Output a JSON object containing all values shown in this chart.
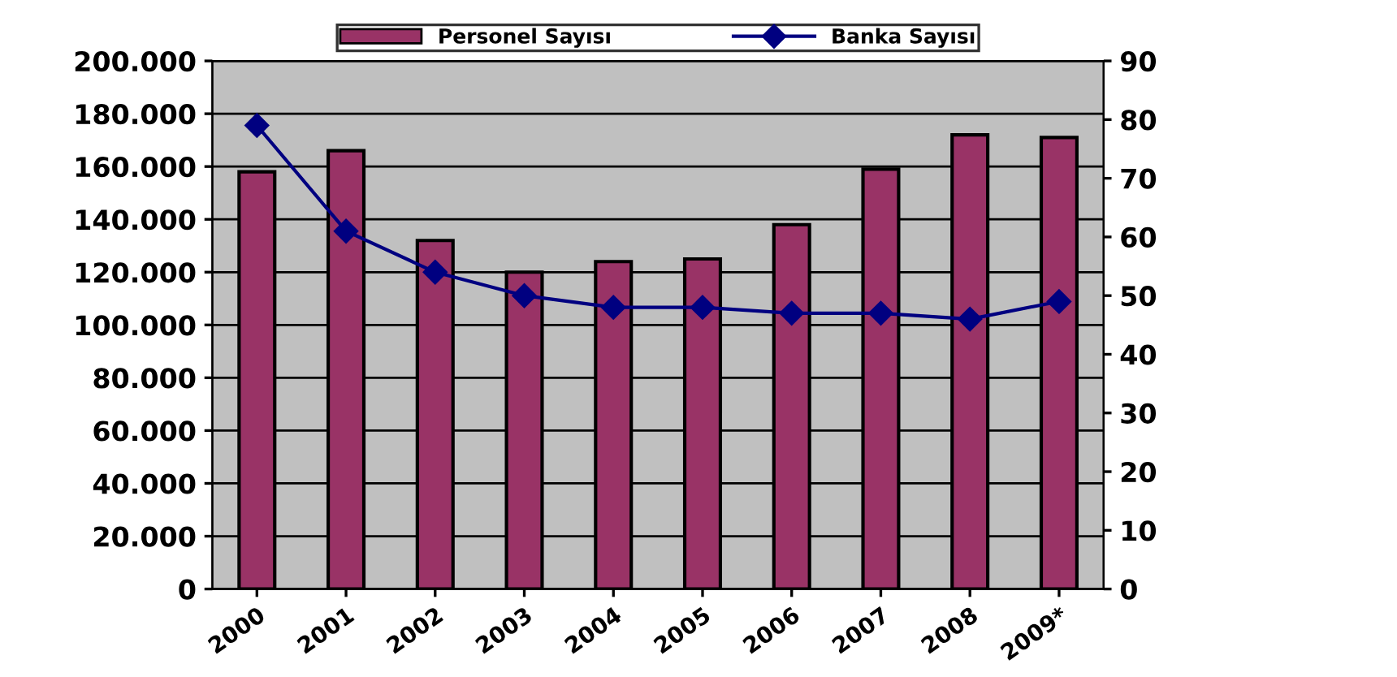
{
  "chart_data": {
    "type": "bar",
    "categories": [
      "2000",
      "2001",
      "2002",
      "2003",
      "2004",
      "2005",
      "2006",
      "2007",
      "2008",
      "2009*"
    ],
    "series": [
      {
        "name": "Personel Sayısı",
        "color": "#993366",
        "values": [
          158000,
          166000,
          132000,
          120000,
          124000,
          125000,
          138000,
          159000,
          172000,
          171000
        ]
      },
      {
        "name": "Banka Sayısı",
        "type": "line",
        "axis": "y2",
        "color": "#000080",
        "values": [
          79,
          61,
          54,
          50,
          48,
          48,
          47,
          47,
          46,
          49
        ]
      }
    ],
    "ylim": [
      0,
      200000
    ],
    "yticks": [
      0,
      {
        "value": 20000,
        "label": "20.000"
      },
      {
        "value": 40000,
        "label": "40.000"
      },
      {
        "value": 60000,
        "label": "60.000"
      },
      {
        "value": 80000,
        "label": "80.000"
      },
      {
        "value": 100000,
        "label": "100.000"
      },
      {
        "value": 120000,
        "label": "120.000"
      },
      {
        "value": 140000,
        "label": "140.000"
      },
      {
        "value": 160000,
        "label": "160.000"
      },
      {
        "value": 180000,
        "label": "180.000"
      },
      {
        "value": 200000,
        "label": "200.000"
      }
    ],
    "y2lim": [
      0,
      90
    ],
    "y2ticks": [
      0,
      10,
      20,
      30,
      40,
      50,
      60,
      70,
      80,
      90
    ],
    "grid": "y",
    "marker": "diamond",
    "legend": "top"
  }
}
